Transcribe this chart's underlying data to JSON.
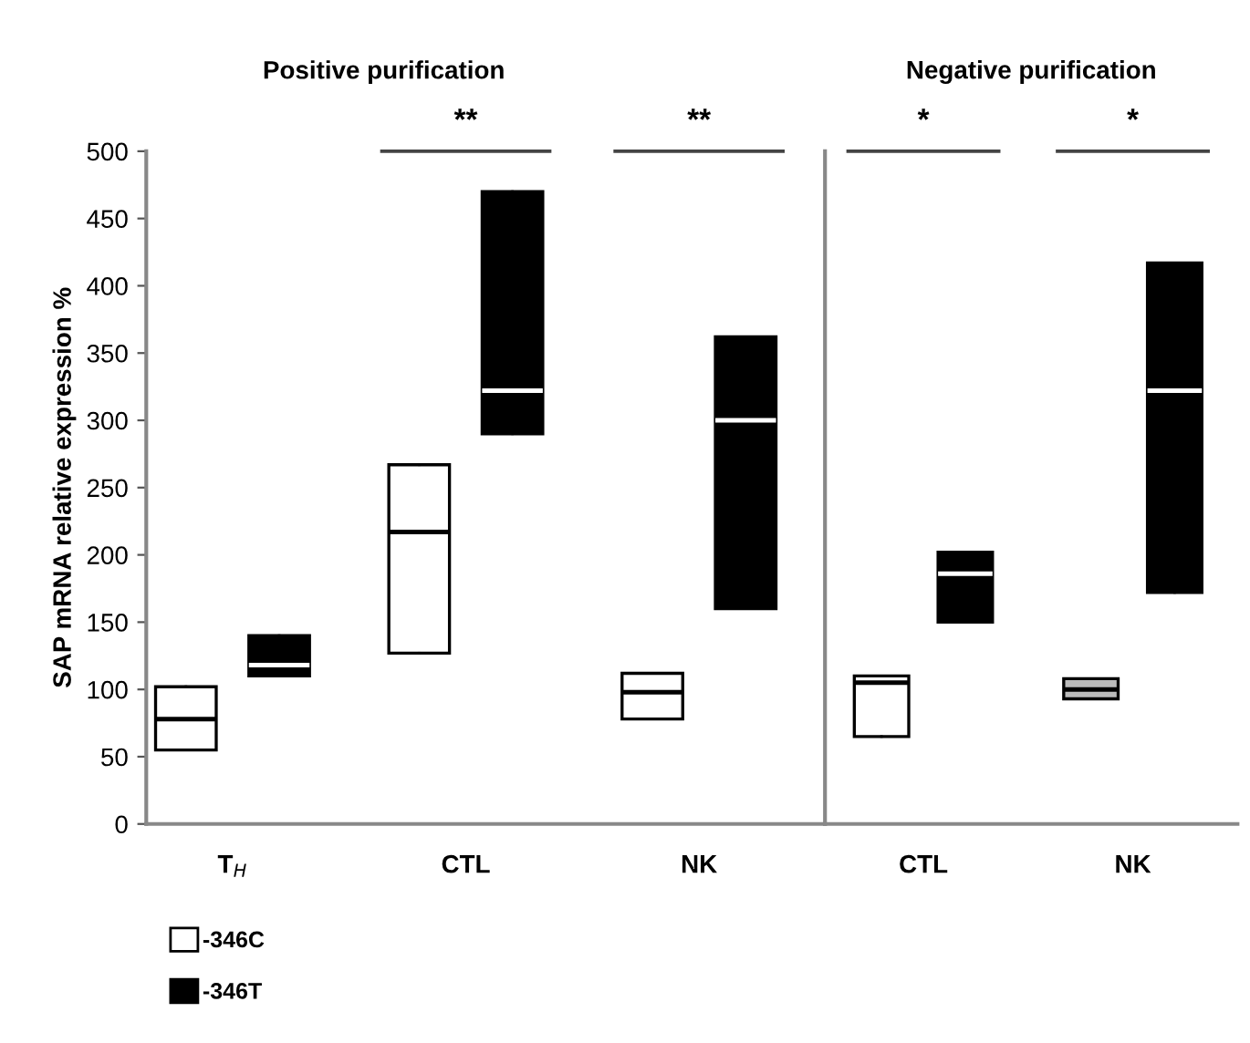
{
  "chart_data": [
    {
      "type": "box",
      "title": "Positive purification",
      "ylabel": "SAP mRNA relative expression %",
      "categories": [
        "T$_{H}$",
        "CTL",
        "NK"
      ],
      "ylim": [
        0,
        500
      ],
      "yticks": [
        0,
        50,
        100,
        150,
        200,
        250,
        300,
        350,
        400,
        450,
        500
      ],
      "grid": false,
      "legend": "bottom left",
      "series": [
        {
          "name": "-346C",
          "color": "#ffffff",
          "boxes": [
            {
              "low": 55,
              "q1": 55,
              "median": 78,
              "q3": 102,
              "high": 102
            },
            {
              "low": 127,
              "q1": 127,
              "median": 217,
              "q3": 267,
              "high": 267
            },
            {
              "low": 78,
              "q1": 78,
              "median": 98,
              "q3": 112,
              "high": 112
            }
          ]
        },
        {
          "name": "-346T",
          "color": "#000000",
          "boxes": [
            {
              "low": 110,
              "q1": 110,
              "median": 118,
              "q3": 140,
              "high": 140
            },
            {
              "low": 290,
              "q1": 290,
              "median": 322,
              "q3": 470,
              "high": 470
            },
            {
              "low": 160,
              "q1": 160,
              "median": 300,
              "q3": 362,
              "high": 362
            }
          ]
        }
      ],
      "annotations": [
        "**",
        "**"
      ]
    },
    {
      "type": "box",
      "title": "Negative purification",
      "categories": [
        "CTL",
        "NK"
      ],
      "ylim": [
        0,
        500
      ],
      "tick_labels": "x",
      "series": [
        {
          "colors": [
            "#ffffff",
            "#bbbbbb"
          ],
          "boxes": [
            {
              "low": 65,
              "q1": 65,
              "median": 105,
              "q3": 110,
              "high": 110
            },
            {
              "low": 93,
              "q1": 93,
              "median": 100,
              "q3": 108,
              "high": 108
            }
          ]
        },
        {
          "color": "#000000",
          "boxes": [
            {
              "low": 150,
              "q1": 150,
              "median": 186,
              "q3": 202,
              "high": 202
            },
            {
              "low": 172,
              "q1": 172,
              "median": 322,
              "q3": 417,
              "high": 417
            }
          ]
        }
      ],
      "annotations": [
        "*",
        "*"
      ]
    }
  ]
}
